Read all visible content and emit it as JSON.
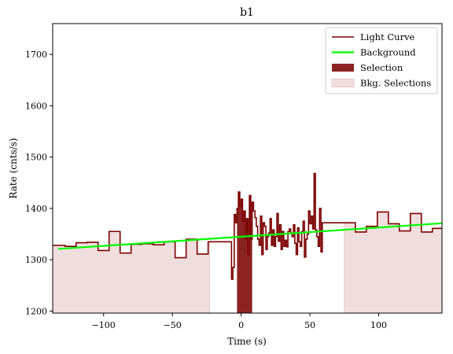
{
  "chart_data": {
    "type": "line",
    "title": "b1",
    "xlabel": "Time (s)",
    "ylabel": "Rate (cnts/s)",
    "xlim": [
      -137,
      146
    ],
    "ylim": [
      1196,
      1760
    ],
    "xticks": [
      -100,
      -50,
      0,
      50,
      100
    ],
    "xtick_labels": [
      "−100",
      "−50",
      "0",
      "50",
      "100"
    ],
    "yticks": [
      1200,
      1300,
      1400,
      1500,
      1600,
      1700
    ],
    "ytick_labels": [
      "1200",
      "1300",
      "1400",
      "1500",
      "1600",
      "1700"
    ],
    "grid": false,
    "legend_position": "top-right",
    "series": [
      {
        "name": "Light Curve",
        "kind": "step",
        "color": "#7a0000",
        "x": [
          -137,
          -128,
          -120,
          -112,
          -104,
          -96,
          -88,
          -80,
          -72,
          -64,
          -56,
          -48,
          -40,
          -32,
          -24,
          -16,
          -8,
          -7,
          -6,
          -5,
          -4,
          -3,
          -2,
          -1,
          0,
          1,
          2,
          3,
          4,
          5,
          6,
          7,
          8,
          9,
          10,
          11,
          12,
          13,
          14,
          15,
          16,
          17,
          18,
          19,
          20,
          21,
          22,
          23,
          24,
          25,
          26,
          27,
          28,
          29,
          30,
          31,
          32,
          33,
          34,
          35,
          36,
          37,
          38,
          39,
          40,
          41,
          42,
          43,
          44,
          45,
          46,
          47,
          48,
          49,
          50,
          51,
          52,
          53,
          54,
          55,
          56,
          57,
          58,
          59,
          60,
          61,
          62,
          63,
          64,
          65,
          66,
          67,
          68,
          69,
          70,
          71,
          72,
          73,
          74,
          75,
          83,
          91,
          99,
          107,
          115,
          123,
          131,
          139,
          146
        ],
        "y": [
          1328,
          1326,
          1333,
          1334,
          1318,
          1355,
          1313,
          1330,
          1331,
          1329,
          1335,
          1304,
          1340,
          1311,
          1335,
          1335,
          1335,
          1262,
          1285,
          1388,
          1372,
          1400,
          1432,
          1405,
          1418,
          1375,
          1395,
          1340,
          1380,
          1310,
          1425,
          1340,
          1412,
          1395,
          1382,
          1365,
          1340,
          1328,
          1385,
          1310,
          1372,
          1365,
          1320,
          1345,
          1352,
          1380,
          1328,
          1358,
          1326,
          1345,
          1390,
          1336,
          1368,
          1320,
          1355,
          1326,
          1338,
          1325,
          1355,
          1360,
          1352,
          1345,
          1368,
          1332,
          1310,
          1362,
          1335,
          1326,
          1355,
          1375,
          1305,
          1340,
          1350,
          1395,
          1370,
          1385,
          1360,
          1468,
          1358,
          1345,
          1326,
          1400,
          1315,
          1372,
          1372,
          1372,
          1372,
          1372,
          1372,
          1372,
          1372,
          1372,
          1372,
          1372,
          1372,
          1372,
          1372,
          1372,
          1372,
          1372,
          1354,
          1365,
          1393,
          1370,
          1356,
          1390,
          1354,
          1361,
          1361
        ]
      },
      {
        "name": "Background",
        "kind": "line",
        "color": "#00ff00",
        "x": [
          -133,
          146
        ],
        "y": [
          1321,
          1371
        ]
      },
      {
        "name": "Selection",
        "kind": "span",
        "color": "#8b2323",
        "x_range": [
          -3,
          8
        ]
      },
      {
        "name": "Bkg. Selections",
        "kind": "span",
        "color": "#f0dede",
        "x_ranges": [
          [
            -137,
            -23
          ],
          [
            75,
            146
          ]
        ]
      }
    ]
  }
}
